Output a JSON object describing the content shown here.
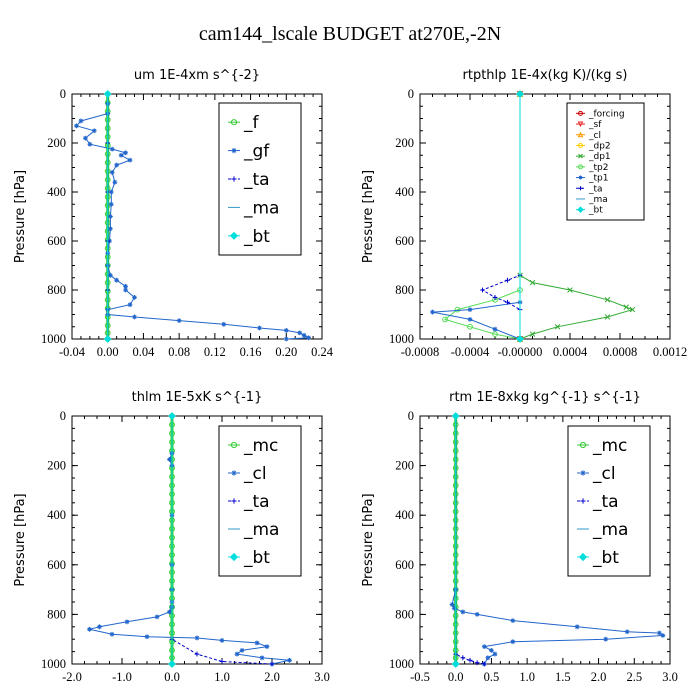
{
  "figure": {
    "title": "cam144_lscale  BUDGET at270E,-2N"
  },
  "chart_data": [
    {
      "type": "line",
      "title": "um   1E-4xm s^{-2}",
      "ylabel": "Pressure [hPa]",
      "xlim": [
        -0.04,
        0.24
      ],
      "ylim": [
        0,
        1000
      ],
      "y_inverted": true,
      "xticks": [
        "-0.04",
        "0.00",
        "0.04",
        "0.08",
        "0.12",
        "0.16",
        "0.20",
        "0.24"
      ],
      "xtick_values": [
        -0.04,
        0.0,
        0.04,
        0.08,
        0.12,
        0.16,
        0.2,
        0.24
      ],
      "yticks": [
        0,
        200,
        400,
        600,
        800,
        1000
      ],
      "legend": {
        "placement": "top-right",
        "size": "large"
      },
      "series": [
        {
          "name": "_f",
          "color": "#33cc33",
          "marker": "circle",
          "width": 3,
          "x": [
            0,
            0,
            0,
            0,
            0,
            0,
            0,
            0,
            0,
            0,
            0,
            0,
            0,
            0,
            0,
            0,
            0,
            0,
            0,
            0,
            0,
            0,
            0,
            0,
            0,
            0,
            0,
            0,
            0,
            0
          ],
          "y": [
            0,
            35,
            70,
            105,
            140,
            175,
            210,
            245,
            280,
            315,
            350,
            385,
            420,
            455,
            490,
            525,
            560,
            595,
            630,
            665,
            700,
            735,
            770,
            805,
            840,
            875,
            910,
            945,
            975,
            1000
          ]
        },
        {
          "name": "_gf",
          "color": "#2266cc",
          "marker": "star",
          "width": 1,
          "x": [
            0.0,
            0.0,
            0.0,
            -0.03,
            -0.035,
            -0.015,
            -0.025,
            -0.02,
            0.005,
            0.02,
            0.015,
            0.025,
            0.01,
            0.005,
            0.008,
            0.004,
            0.004,
            0.003,
            0.003,
            0.002,
            0.0,
            0.0,
            0.003,
            0.01,
            0.02,
            0.02,
            0.03,
            0.025,
            0.0,
            0.0,
            0.03,
            0.08,
            0.13,
            0.17,
            0.2,
            0.215,
            0.22,
            0.225,
            0.2
          ],
          "y": [
            0,
            40,
            80,
            110,
            130,
            150,
            180,
            205,
            225,
            240,
            250,
            270,
            290,
            320,
            360,
            400,
            450,
            500,
            550,
            600,
            650,
            700,
            740,
            760,
            785,
            800,
            830,
            860,
            880,
            900,
            910,
            925,
            940,
            955,
            965,
            975,
            985,
            995,
            1000
          ]
        },
        {
          "name": "_ta",
          "color": "#0000cc",
          "marker": "plus",
          "width": 1,
          "dash": "3,2",
          "x": [
            0,
            0,
            0,
            0,
            0,
            0
          ],
          "y": [
            0,
            200,
            400,
            600,
            800,
            1000
          ]
        },
        {
          "name": "_ma",
          "color": "#3399cc",
          "marker": "none",
          "width": 1,
          "x": [
            0,
            0
          ],
          "y": [
            0,
            1000
          ]
        },
        {
          "name": "_bt",
          "color": "#00dddd",
          "marker": "diamond",
          "width": 1,
          "x": [
            0,
            0
          ],
          "y": [
            0,
            1000
          ]
        }
      ]
    },
    {
      "type": "line",
      "title": "rtpthlp   1E-4x(kg K)/(kg s)",
      "ylabel": "Pressure [hPa]",
      "xlim": [
        -0.0008,
        0.0012
      ],
      "ylim": [
        0,
        1000
      ],
      "y_inverted": true,
      "xticks": [
        "-0.0008",
        "-0.0004",
        "-0.00000",
        "0.0004",
        "0.0008",
        "0.0012"
      ],
      "xtick_values": [
        -0.0008,
        -0.0004,
        0.0,
        0.0004,
        0.0008,
        0.0012
      ],
      "yticks": [
        0,
        200,
        400,
        600,
        800,
        1000
      ],
      "legend": {
        "placement": "top-right",
        "size": "small"
      },
      "series": [
        {
          "name": "_forcing",
          "color": "#cc0000",
          "marker": "circle",
          "width": 1,
          "x": [
            0,
            0
          ],
          "y": [
            0,
            1000
          ]
        },
        {
          "name": "_sf",
          "color": "#ee2222",
          "marker": "triangle-down",
          "width": 1,
          "x": [
            0,
            0
          ],
          "y": [
            0,
            1000
          ]
        },
        {
          "name": "_cl",
          "color": "#ff9900",
          "marker": "triangle-up",
          "width": 1,
          "x": [
            0,
            0
          ],
          "y": [
            0,
            1000
          ]
        },
        {
          "name": "_dp2",
          "color": "#ffcc00",
          "marker": "circle",
          "width": 1,
          "x": [
            0,
            0
          ],
          "y": [
            0,
            1000
          ]
        },
        {
          "name": "_dp1",
          "color": "#33aa33",
          "marker": "cross",
          "width": 1,
          "x": [
            0,
            0,
            0.0001,
            0.0004,
            0.0007,
            0.00085,
            0.0009,
            0.0007,
            0.0003,
            0.0001,
            0.0
          ],
          "y": [
            0,
            740,
            770,
            800,
            840,
            870,
            880,
            910,
            950,
            980,
            1000
          ]
        },
        {
          "name": "_tp2",
          "color": "#55dd55",
          "marker": "circle",
          "width": 1,
          "x": [
            0,
            0,
            -0.0002,
            -0.0005,
            -0.0006,
            -0.0004,
            -0.0002,
            0.0
          ],
          "y": [
            0,
            800,
            840,
            880,
            920,
            950,
            980,
            1000
          ]
        },
        {
          "name": "_tp1",
          "color": "#2266cc",
          "marker": "star",
          "width": 1,
          "x": [
            0,
            0,
            -0.0004,
            -0.0007,
            -0.0004,
            -0.0002,
            0.0
          ],
          "y": [
            0,
            850,
            880,
            890,
            920,
            960,
            1000
          ]
        },
        {
          "name": "_ta",
          "color": "#0000cc",
          "marker": "plus",
          "width": 1,
          "dash": "3,2",
          "x": [
            0,
            0,
            -0.0001,
            -0.0003,
            -0.0002,
            -0.0001,
            0.0
          ],
          "y": [
            0,
            740,
            760,
            800,
            830,
            850,
            880
          ]
        },
        {
          "name": "_ma",
          "color": "#3399cc",
          "marker": "none",
          "width": 1,
          "x": [
            0,
            0
          ],
          "y": [
            0,
            1000
          ]
        },
        {
          "name": "_bt",
          "color": "#00dddd",
          "marker": "diamond",
          "width": 1,
          "x": [
            0,
            0
          ],
          "y": [
            0,
            1000
          ]
        }
      ]
    },
    {
      "type": "line",
      "title": "thlm   1E-5xK s^{-1}",
      "ylabel": "Pressure [hPa]",
      "xlim": [
        -2.0,
        3.0
      ],
      "ylim": [
        0,
        1000
      ],
      "y_inverted": true,
      "xticks": [
        "-2.0",
        "-1.0",
        "0.0",
        "1.0",
        "2.0",
        "3.0"
      ],
      "xtick_values": [
        -2.0,
        -1.0,
        0.0,
        1.0,
        2.0,
        3.0
      ],
      "yticks": [
        0,
        200,
        400,
        600,
        800,
        1000
      ],
      "legend": {
        "placement": "top-right",
        "size": "large"
      },
      "series": [
        {
          "name": "_mc",
          "color": "#33cc33",
          "marker": "circle",
          "width": 3,
          "x": [
            0,
            0,
            0,
            0,
            0,
            0,
            0,
            0,
            0,
            0,
            0,
            0,
            0,
            0,
            0,
            0,
            0,
            0,
            0,
            0,
            0,
            0,
            0,
            0,
            0,
            0,
            0,
            0,
            0,
            0
          ],
          "y": [
            0,
            35,
            70,
            105,
            140,
            175,
            210,
            245,
            280,
            315,
            350,
            385,
            420,
            455,
            490,
            525,
            560,
            595,
            630,
            665,
            700,
            735,
            770,
            805,
            840,
            875,
            910,
            945,
            975,
            1000
          ]
        },
        {
          "name": "_cl",
          "color": "#2266cc",
          "marker": "star",
          "width": 1,
          "x": [
            0.0,
            0.0,
            -0.05,
            0.0,
            0.0,
            0.0,
            0.0,
            0.0,
            0.0,
            -0.05,
            -0.3,
            -0.9,
            -1.45,
            -1.65,
            -1.2,
            -0.5,
            0.5,
            1.0,
            1.7,
            1.9,
            1.4,
            1.3,
            1.8,
            2.35,
            2.0
          ],
          "y": [
            0,
            150,
            175,
            200,
            400,
            600,
            700,
            750,
            770,
            790,
            810,
            830,
            850,
            860,
            880,
            890,
            895,
            905,
            915,
            930,
            945,
            960,
            975,
            985,
            1000
          ]
        },
        {
          "name": "_ta",
          "color": "#0000cc",
          "marker": "plus",
          "width": 1,
          "dash": "3,2",
          "x": [
            0,
            0,
            0.5,
            1.0,
            2.0
          ],
          "y": [
            0,
            900,
            960,
            990,
            1000
          ]
        },
        {
          "name": "_ma",
          "color": "#3399cc",
          "marker": "none",
          "width": 1,
          "x": [
            0,
            0
          ],
          "y": [
            0,
            1000
          ]
        },
        {
          "name": "_bt",
          "color": "#00dddd",
          "marker": "diamond",
          "width": 1,
          "x": [
            0,
            0
          ],
          "y": [
            0,
            1000
          ]
        }
      ]
    },
    {
      "type": "line",
      "title": "rtm   1E-8xkg kg^{-1} s^{-1}",
      "ylabel": "Pressure [hPa]",
      "xlim": [
        -0.5,
        3.0
      ],
      "ylim": [
        0,
        1000
      ],
      "y_inverted": true,
      "xticks": [
        "-0.5",
        "0.0",
        "0.5",
        "1.0",
        "1.5",
        "2.0",
        "2.5",
        "3.0"
      ],
      "xtick_values": [
        -0.5,
        0.0,
        0.5,
        1.0,
        1.5,
        2.0,
        2.5,
        3.0
      ],
      "yticks": [
        0,
        200,
        400,
        600,
        800,
        1000
      ],
      "legend": {
        "placement": "top-right",
        "size": "large"
      },
      "series": [
        {
          "name": "_mc",
          "color": "#33cc33",
          "marker": "circle",
          "width": 3,
          "x": [
            0,
            0,
            0,
            0,
            0,
            0,
            0,
            0,
            0,
            0,
            0,
            0,
            0,
            0,
            0,
            0,
            0,
            0,
            0,
            0,
            0,
            0,
            0,
            0,
            0,
            0,
            0,
            0,
            0,
            0
          ],
          "y": [
            0,
            35,
            70,
            105,
            140,
            175,
            210,
            245,
            280,
            315,
            350,
            385,
            420,
            455,
            490,
            525,
            560,
            595,
            630,
            665,
            700,
            735,
            770,
            805,
            840,
            875,
            910,
            945,
            975,
            1000
          ]
        },
        {
          "name": "_cl",
          "color": "#2266cc",
          "marker": "star",
          "width": 1,
          "x": [
            0.0,
            0.0,
            -0.05,
            -0.02,
            0.1,
            0.3,
            0.8,
            1.7,
            2.4,
            2.85,
            2.9,
            2.1,
            0.8,
            0.4,
            0.5,
            0.55,
            0.45,
            0.4
          ],
          "y": [
            0,
            700,
            760,
            775,
            790,
            800,
            825,
            850,
            870,
            875,
            885,
            900,
            910,
            930,
            945,
            960,
            975,
            1000
          ]
        },
        {
          "name": "_ta",
          "color": "#0000cc",
          "marker": "plus",
          "width": 1,
          "dash": "3,2",
          "x": [
            0,
            0,
            0.1,
            0.2,
            0.3,
            0.4
          ],
          "y": [
            0,
            960,
            975,
            985,
            995,
            1000
          ]
        },
        {
          "name": "_ma",
          "color": "#3399cc",
          "marker": "none",
          "width": 1,
          "x": [
            0,
            0
          ],
          "y": [
            0,
            1000
          ]
        },
        {
          "name": "_bt",
          "color": "#00dddd",
          "marker": "diamond",
          "width": 1,
          "x": [
            0,
            0
          ],
          "y": [
            0,
            1000
          ]
        }
      ]
    }
  ]
}
